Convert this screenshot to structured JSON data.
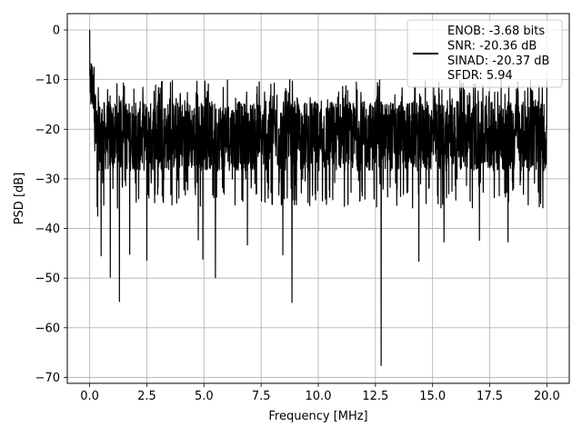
{
  "chart_data": {
    "type": "line",
    "title": "",
    "xlabel": "Frequency [MHz]",
    "ylabel": "PSD [dB]",
    "xlim": [
      -0.98,
      20.98
    ],
    "ylim": [
      -71.2,
      3.3
    ],
    "xticks": [
      0,
      2.5,
      5,
      7.5,
      10,
      12.5,
      15,
      17.5,
      20
    ],
    "xtick_labels": [
      "0.0",
      "2.5",
      "5.0",
      "7.5",
      "10.0",
      "12.5",
      "15.0",
      "17.5",
      "20.0"
    ],
    "yticks": [
      0,
      -10,
      -20,
      -30,
      -40,
      -50,
      -60,
      -70
    ],
    "ytick_labels": [
      "0",
      "−10",
      "−20",
      "−30",
      "−40",
      "−50",
      "−60",
      "−70"
    ],
    "grid": true,
    "legend_position": "top-right",
    "series": [
      {
        "name": "ENOB: -3.68 bits\nSNR: -20.36 dB\nSINAD: -20.37 dB\nSFDR: 5.94",
        "name_lines": [
          "ENOB: -3.68 bits",
          "SNR: -20.36 dB",
          "SINAD: -20.37 dB",
          "SFDR: 5.94"
        ],
        "color": "#000000",
        "x_start": 0,
        "x_end": 20,
        "baseline_db": -20.4,
        "notable_points": [
          {
            "x": 0.0,
            "y": 0.0
          },
          {
            "x": 0.35,
            "y": -37.5
          },
          {
            "x": 0.5,
            "y": -45.5
          },
          {
            "x": 0.9,
            "y": -49.8
          },
          {
            "x": 1.3,
            "y": -54.7
          },
          {
            "x": 1.75,
            "y": -45.2
          },
          {
            "x": 2.5,
            "y": -46.4
          },
          {
            "x": 4.75,
            "y": -42.3
          },
          {
            "x": 4.95,
            "y": -46.2
          },
          {
            "x": 5.5,
            "y": -49.9
          },
          {
            "x": 6.9,
            "y": -43.3
          },
          {
            "x": 8.45,
            "y": -45.3
          },
          {
            "x": 8.85,
            "y": -54.9
          },
          {
            "x": 12.75,
            "y": -67.6
          },
          {
            "x": 14.4,
            "y": -46.6
          },
          {
            "x": 15.5,
            "y": -42.7
          },
          {
            "x": 17.05,
            "y": -42.4
          },
          {
            "x": 18.3,
            "y": -42.7
          }
        ]
      }
    ]
  }
}
